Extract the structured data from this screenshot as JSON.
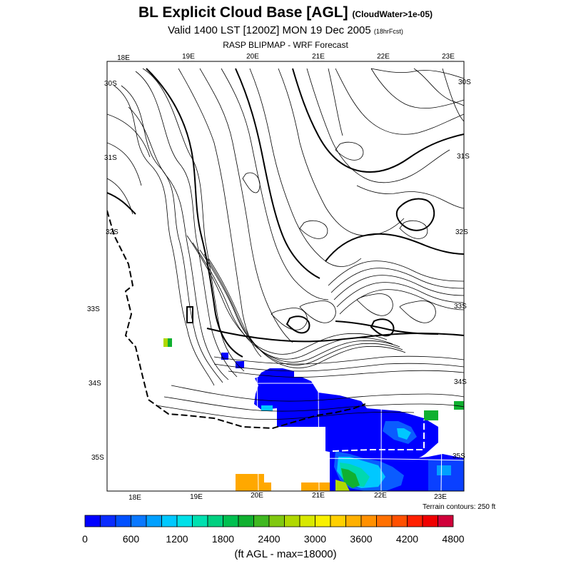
{
  "header": {
    "title": "BL Explicit Cloud Base [AGL]",
    "title_note": "(CloudWater>1e-05)",
    "valid": "Valid 1400 LST [1200Z] MON 19 Dec 2005",
    "valid_note": "(18hrFcst)",
    "subtitle": "RASP BLIPMAP - WRF Forecast"
  },
  "map": {
    "top_lon_labels": [
      "18E",
      "19E",
      "20E",
      "21E",
      "22E",
      "23E"
    ],
    "bottom_lon_labels": [
      "18E",
      "19E",
      "20E",
      "21E",
      "22E",
      "23E"
    ],
    "left_lat_labels": [
      "30S",
      "31S",
      "32S",
      "33S",
      "34S",
      "35S"
    ],
    "right_lat_labels": [
      "30S",
      "31S",
      "32S",
      "33S",
      "34S",
      "35S"
    ],
    "terrain_note": "Terrain contours: 250 ft"
  },
  "colorbar": {
    "colors": [
      "#0000ff",
      "#0a2cff",
      "#0050ff",
      "#0a78ff",
      "#00a0ff",
      "#00c8ff",
      "#00e0e8",
      "#00e0b0",
      "#00d080",
      "#00c050",
      "#10b030",
      "#40b820",
      "#80c810",
      "#b0d800",
      "#d8e800",
      "#f8f000",
      "#ffd000",
      "#ffb000",
      "#ff9000",
      "#ff7000",
      "#ff5000",
      "#ff2000",
      "#f00000",
      "#d0003a"
    ],
    "tick_labels": [
      "0",
      "600",
      "1200",
      "1800",
      "2400",
      "3000",
      "3600",
      "4200",
      "4800"
    ],
    "units": "(ft AGL - max=18000)"
  },
  "cloud_colors": {
    "blue": "#0000ff",
    "mid_blue": "#0a5cff",
    "cyan": "#00c8ff",
    "teal": "#00d8b0",
    "green": "#10b030",
    "yellow_green": "#b0d800",
    "orange": "#ffa800"
  }
}
